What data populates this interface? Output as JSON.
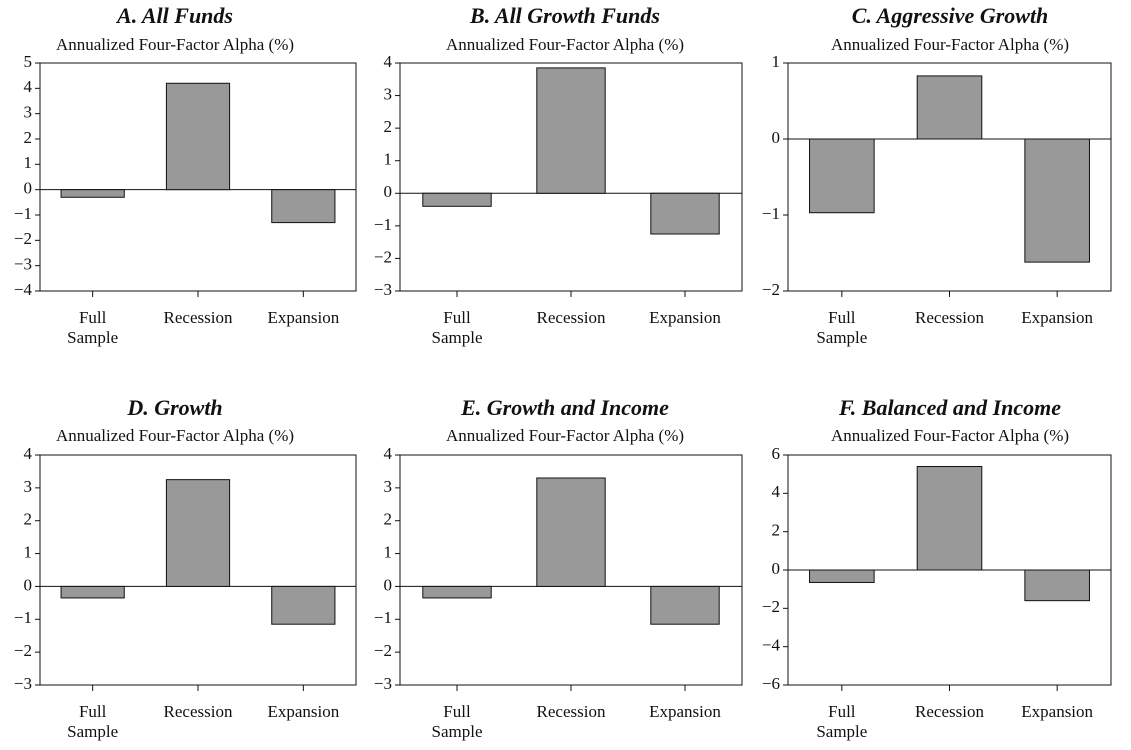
{
  "chart_data": [
    {
      "type": "bar",
      "title": "A. All Funds",
      "subtitle": "Annualized Four-Factor Alpha (%)",
      "categories": [
        "Full Sample",
        "Recession",
        "Expansion"
      ],
      "values": [
        -0.3,
        4.2,
        -1.3
      ],
      "color": "#999999",
      "ylim": [
        -4,
        5
      ],
      "yticks": [
        {
          "value": -4,
          "label": "−4"
        },
        {
          "value": -3,
          "label": "−3"
        },
        {
          "value": -2,
          "label": "−2"
        },
        {
          "value": -1,
          "label": "−1"
        },
        0,
        1,
        2,
        3,
        4,
        5
      ]
    },
    {
      "type": "bar",
      "title": "B. All Growth Funds",
      "subtitle": "Annualized Four-Factor Alpha (%)",
      "categories": [
        "Full Sample",
        "Recession",
        "Expansion"
      ],
      "values": [
        -0.4,
        3.85,
        -1.25
      ],
      "color": "#999999",
      "ylim": [
        -3,
        4
      ],
      "yticks": [
        {
          "value": -3,
          "label": "−3"
        },
        {
          "value": -2,
          "label": "−2"
        },
        {
          "value": -1,
          "label": "−1"
        },
        0,
        1,
        2,
        3,
        4
      ]
    },
    {
      "type": "bar",
      "title": "C. Aggressive Growth",
      "subtitle": "Annualized Four-Factor Alpha (%)",
      "categories": [
        "Full Sample",
        "Recession",
        "Expansion"
      ],
      "values": [
        -0.97,
        0.83,
        -1.62
      ],
      "color": "#999999",
      "ylim": [
        -2,
        1
      ],
      "yticks": [
        {
          "value": -2,
          "label": "−2"
        },
        {
          "value": -1,
          "label": "−1"
        },
        0,
        1
      ]
    },
    {
      "type": "bar",
      "title": "D. Growth",
      "subtitle": "Annualized Four-Factor Alpha (%)",
      "categories": [
        "Full Sample",
        "Recession",
        "Expansion"
      ],
      "values": [
        -0.35,
        3.25,
        -1.15
      ],
      "color": "#999999",
      "ylim": [
        -3,
        4
      ],
      "yticks": [
        {
          "value": -3,
          "label": "−3"
        },
        {
          "value": -2,
          "label": "−2"
        },
        {
          "value": -1,
          "label": "−1"
        },
        0,
        1,
        2,
        3,
        4
      ]
    },
    {
      "type": "bar",
      "title": "E. Growth and Income",
      "subtitle": "Annualized Four-Factor Alpha (%)",
      "categories": [
        "Full Sample",
        "Recession",
        "Expansion"
      ],
      "values": [
        -0.35,
        3.3,
        -1.15
      ],
      "color": "#999999",
      "ylim": [
        -3,
        4
      ],
      "yticks": [
        {
          "value": -3,
          "label": "−3"
        },
        {
          "value": -2,
          "label": "−2"
        },
        {
          "value": -1,
          "label": "−1"
        },
        0,
        1,
        2,
        3,
        4
      ]
    },
    {
      "type": "bar",
      "title": "F. Balanced and Income",
      "subtitle": "Annualized Four-Factor Alpha (%)",
      "categories": [
        "Full Sample",
        "Recession",
        "Expansion"
      ],
      "values": [
        -0.65,
        5.4,
        -1.6
      ],
      "color": "#999999",
      "ylim": [
        -6,
        6
      ],
      "yticks": [
        {
          "value": -6,
          "label": "−6"
        },
        {
          "value": -4,
          "label": "−4"
        },
        {
          "value": -2,
          "label": "−2"
        },
        0,
        2,
        4,
        6
      ]
    }
  ]
}
